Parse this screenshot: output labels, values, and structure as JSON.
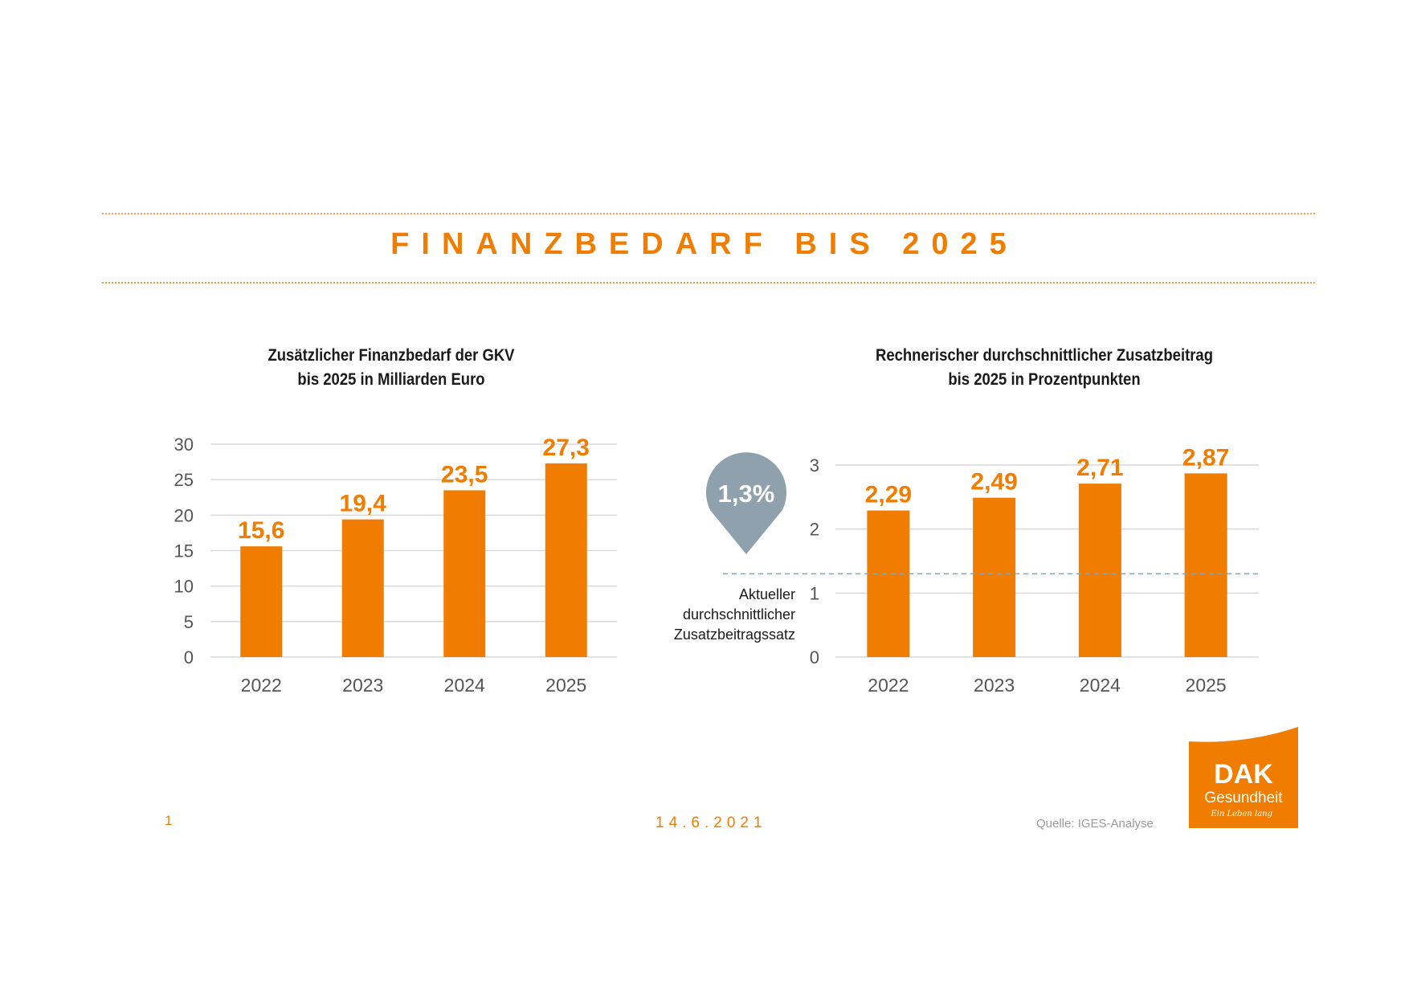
{
  "header": {
    "title": "FINANZBEDARF BIS 2025"
  },
  "footer": {
    "page": "1",
    "date": "14.6.2021",
    "source": "Quelle: IGES-Analyse"
  },
  "logo": {
    "brand": "DAK",
    "name": "Gesundheit",
    "slogan": "Ein Leben lang",
    "color": "#f07d00"
  },
  "colors": {
    "accent": "#f07d00",
    "grid": "#d9d9d9",
    "marker": "#8fa1ad"
  },
  "chart_data": [
    {
      "type": "bar",
      "title_lines": [
        "Zusätzlicher Finanzbedarf der GKV",
        "bis 2025 in Milliarden Euro"
      ],
      "categories": [
        "2022",
        "2023",
        "2024",
        "2025"
      ],
      "values": [
        15.6,
        19.4,
        23.5,
        27.3
      ],
      "value_labels": [
        "15,6",
        "19,4",
        "23,5",
        "27,3"
      ],
      "ylim": [
        0,
        30
      ],
      "yticks": [
        0,
        5,
        10,
        15,
        20,
        25,
        30
      ],
      "grid": true
    },
    {
      "type": "bar",
      "title_lines": [
        "Rechnerischer durchschnittlicher Zusatzbeitrag",
        "bis 2025 in Prozentpunkten"
      ],
      "categories": [
        "2022",
        "2023",
        "2024",
        "2025"
      ],
      "values": [
        2.29,
        2.49,
        2.71,
        2.87
      ],
      "value_labels": [
        "2,29",
        "2,49",
        "2,71",
        "2,87"
      ],
      "ylim": [
        0,
        3
      ],
      "yticks": [
        0,
        1,
        2,
        3
      ],
      "grid": true,
      "reference_line": {
        "value": 1.3,
        "label": "1,3%",
        "annotation_lines": [
          "Aktueller",
          "durchschnittlicher",
          "Zusatzbeitragssatz"
        ]
      }
    }
  ]
}
